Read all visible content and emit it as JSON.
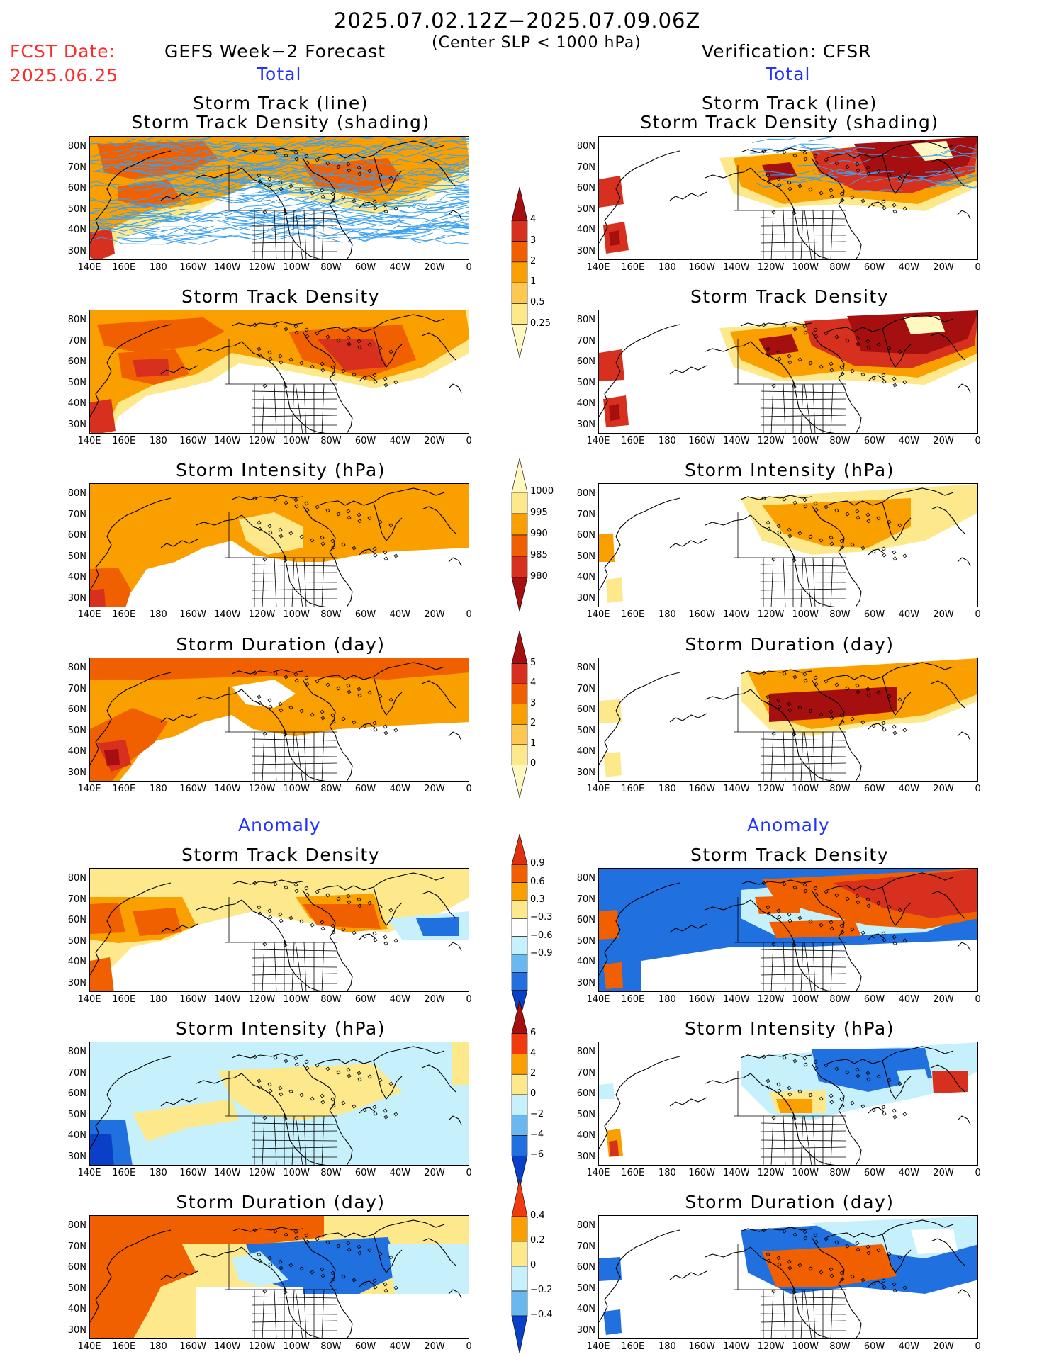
{
  "header": {
    "period": "2025.07.02.12Z−2025.07.09.06Z",
    "subtitle": "(Center SLP < 1000 hPa)",
    "fcst_label": "FCST Date:",
    "fcst_date": "2025.06.25",
    "left_title": "GEFS Week−2 Forecast",
    "right_title": "Verification: CFSR"
  },
  "sections": {
    "total": "Total",
    "anomaly": "Anomaly"
  },
  "panel_titles": {
    "track_line": "Storm Track (line)",
    "track_shading": "Storm Track Density (shading)",
    "density": "Storm Track Density",
    "intensity": "Storm Intensity (hPa)",
    "duration": "Storm Duration (day)"
  },
  "axes": {
    "lat_labels": [
      "80N",
      "70N",
      "60N",
      "50N",
      "40N",
      "30N"
    ],
    "lon_labels": [
      "140E",
      "160E",
      "180",
      "160W",
      "140W",
      "120W",
      "100W",
      "80W",
      "60W",
      "40W",
      "20W",
      "0"
    ]
  },
  "colorbars": {
    "density_total": {
      "labels": [
        "4",
        "3",
        "2",
        "1",
        "0.5",
        "0.25"
      ],
      "colors": [
        "#a50f0f",
        "#d7301f",
        "#f06000",
        "#f99f00",
        "#fcc850",
        "#fde98c",
        "#fff8c0"
      ]
    },
    "intensity_total": {
      "labels": [
        "1000",
        "995",
        "990",
        "985",
        "980"
      ],
      "colors": [
        "#fff8c0",
        "#fde98c",
        "#f99f00",
        "#f06000",
        "#d7301f",
        "#a50f0f"
      ]
    },
    "duration_total": {
      "labels": [
        "5",
        "4",
        "3",
        "2",
        "1",
        "0"
      ],
      "colors": [
        "#a50f0f",
        "#d7301f",
        "#f06000",
        "#f99f00",
        "#fcc850",
        "#fde98c",
        "#fff8c0"
      ]
    },
    "density_anom": {
      "labels": [
        "0.9",
        "0.6",
        "0.3",
        "−0.3",
        "−0.6",
        "−0.9"
      ],
      "colors": [
        "#e03010",
        "#f06000",
        "#f99f00",
        "#fde98c",
        "#ffffff",
        "#c6f0fb",
        "#6ab8f0",
        "#2070e0",
        "#0a40c8"
      ]
    },
    "intensity_anom": {
      "labels": [
        "6",
        "4",
        "2",
        "0",
        "−2",
        "−4",
        "−6"
      ],
      "colors": [
        "#a50f0f",
        "#f03a10",
        "#f99f00",
        "#fde98c",
        "#c6f0fb",
        "#6ab8f0",
        "#2070e0",
        "#0a40c8"
      ]
    },
    "duration_anom": {
      "labels": [
        "0.4",
        "0.2",
        "0",
        "−0.2",
        "−0.4"
      ],
      "colors": [
        "#f03a10",
        "#f99f00",
        "#fde98c",
        "#c6f0fb",
        "#6ab8f0",
        "#0a40c8"
      ]
    }
  },
  "colors": {
    "yellow": "#fde98c",
    "orange": "#f99f00",
    "darkorange": "#f06000",
    "red": "#d7301f",
    "darkred": "#a50f0f",
    "lightblue": "#c6f0fb",
    "blue": "#2070e0",
    "navy": "#0a40c8",
    "track_line": "#3aa0f0"
  }
}
